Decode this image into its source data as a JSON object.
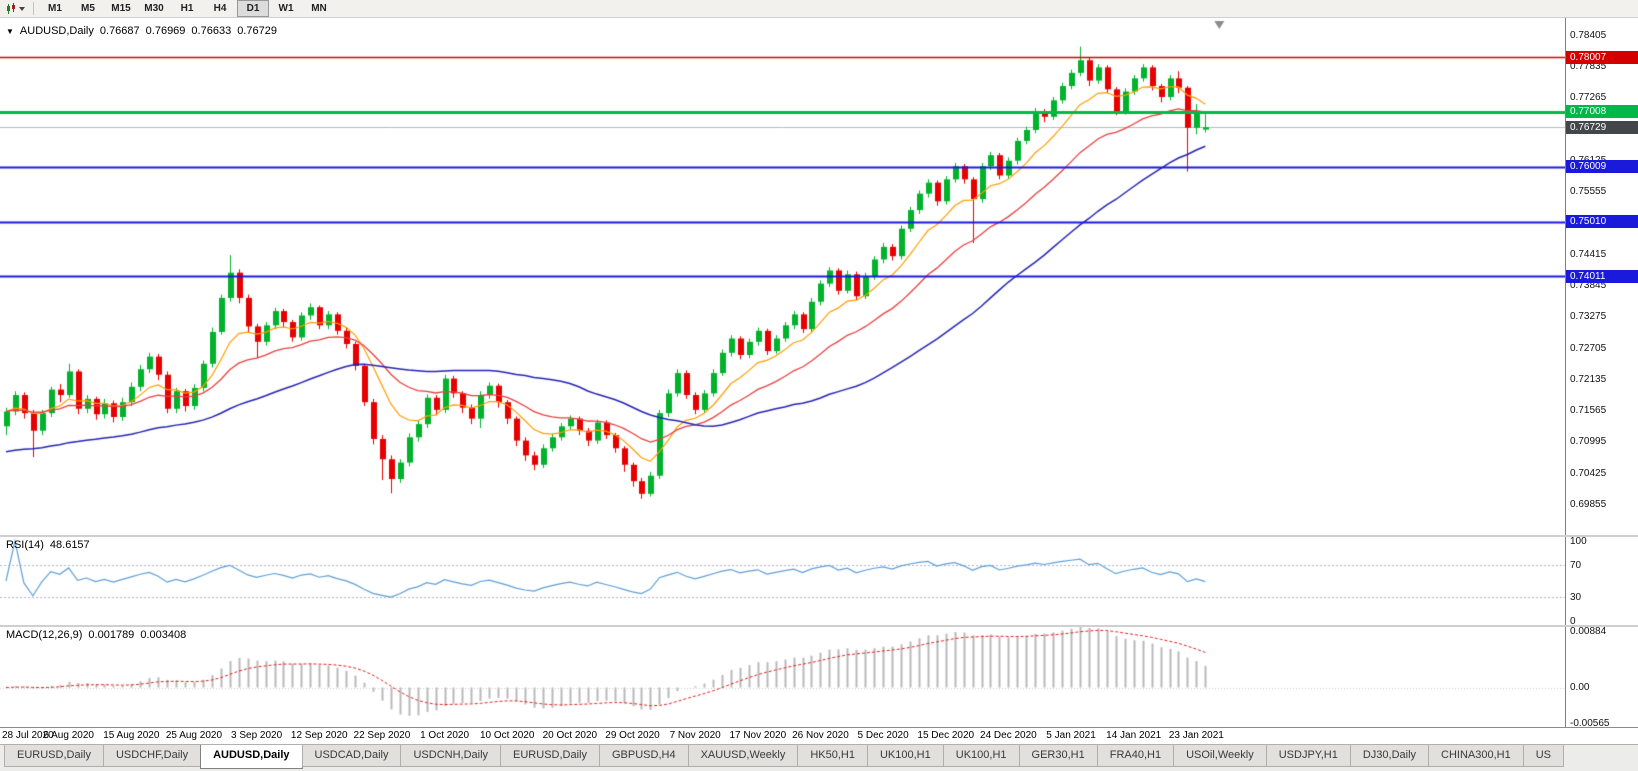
{
  "toolbar": {
    "timeframes": [
      "M1",
      "M5",
      "M15",
      "M30",
      "H1",
      "H4",
      "D1",
      "W1",
      "MN"
    ],
    "active_timeframe": "D1",
    "icons": [
      "candlestick-chart-icon",
      "caret-down-icon"
    ]
  },
  "main_header": {
    "icon": "▼",
    "symbol": "AUDUSD,Daily",
    "open": "0.76687",
    "high": "0.76969",
    "low": "0.76633",
    "close": "0.76729"
  },
  "rsi_header": {
    "name": "RSI(14)",
    "value": "48.6157"
  },
  "macd_header": {
    "name": "MACD(12,26,9)",
    "value1": "0.001789",
    "value2": "0.003408"
  },
  "chart_data": {
    "type": "candlestick",
    "symbol": "AUDUSD",
    "timeframe": "Daily",
    "ohlc_display": {
      "open": 0.76687,
      "high": 0.76969,
      "low": 0.76633,
      "close": 0.76729
    },
    "price_range": {
      "min": 0.693,
      "max": 0.7872
    },
    "bar_spacing": 8.95,
    "colors": {
      "up": "#00b22c",
      "down": "#e60000",
      "ma_fast": "#ff9d00",
      "ma_mid": "#e8403f",
      "ma_slow": "#2424b4",
      "rsi": "#5f9ed6",
      "macd_hist": "#b8b8b8",
      "macd_signal": "#dd2222",
      "bid_line": "#b8b8b8"
    },
    "y_ticks": [
      "0.78405",
      "0.77835",
      "0.77265",
      "0.76695",
      "0.76125",
      "0.75555",
      "0.74985",
      "0.74415",
      "0.73845",
      "0.73275",
      "0.72705",
      "0.72135",
      "0.71565",
      "0.70995",
      "0.70425",
      "0.69855"
    ],
    "levels": [
      {
        "price": 0.78007,
        "label": "0.78007",
        "color": "#d40000",
        "width": 1.4
      },
      {
        "price": 0.77008,
        "label": "0.77008",
        "color": "#00b84a",
        "width": 3
      },
      {
        "price": 0.76009,
        "label": "0.76009",
        "color": "#1a1adc",
        "width": 2
      },
      {
        "price": 0.7501,
        "label": "0.75010",
        "color": "#1a1adc",
        "width": 2
      },
      {
        "price": 0.74011,
        "label": "0.74011",
        "color": "#1a1adc",
        "width": 2
      }
    ],
    "bid": {
      "price": 0.76729,
      "label": "0.76729",
      "badge_color": "#43474c"
    },
    "x_labels": [
      "28 Jul 2020",
      "6 Aug 2020",
      "15 Aug 2020",
      "25 Aug 2020",
      "3 Sep 2020",
      "12 Sep 2020",
      "22 Sep 2020",
      "1 Oct 2020",
      "10 Oct 2020",
      "20 Oct 2020",
      "29 Oct 2020",
      "7 Nov 2020",
      "17 Nov 2020",
      "26 Nov 2020",
      "5 Dec 2020",
      "15 Dec 2020",
      "24 Dec 2020",
      "5 Jan 2021",
      "14 Jan 2021",
      "23 Jan 2021"
    ],
    "x_label_bars": [
      0,
      7,
      14,
      21,
      28,
      35,
      42,
      49,
      56,
      63,
      70,
      77,
      84,
      91,
      98,
      105,
      112,
      119,
      126,
      133
    ],
    "ma_periods": {
      "fast_ema": 9,
      "mid_ema": 21,
      "slow_sma": 40,
      "slow_seed": 0.708
    },
    "rsi": {
      "period": 14,
      "levels": [
        70,
        30
      ],
      "y_ticks": [
        "100",
        "70",
        "30",
        "0"
      ],
      "range": {
        "min": -5,
        "max": 105
      }
    },
    "macd": {
      "fast": 12,
      "slow": 26,
      "signal": 9,
      "range": {
        "min": -0.0062,
        "max": 0.0095
      },
      "y_ticks": [
        {
          "label": "0.00884",
          "value": 0.00884
        },
        {
          "label": "0.00",
          "value": 0
        },
        {
          "label": "-0.00565",
          "value": -0.00565
        }
      ]
    },
    "candles": [
      [
        0.7128,
        0.7162,
        0.7112,
        0.7155
      ],
      [
        0.7155,
        0.7192,
        0.7148,
        0.7185
      ],
      [
        0.7185,
        0.719,
        0.7142,
        0.7152
      ],
      [
        0.7152,
        0.7158,
        0.7072,
        0.712
      ],
      [
        0.712,
        0.7158,
        0.7112,
        0.7152
      ],
      [
        0.7152,
        0.72,
        0.7145,
        0.7195
      ],
      [
        0.7195,
        0.7205,
        0.7172,
        0.7185
      ],
      [
        0.7185,
        0.7242,
        0.718,
        0.7228
      ],
      [
        0.7228,
        0.7232,
        0.715,
        0.716
      ],
      [
        0.716,
        0.7185,
        0.7152,
        0.7178
      ],
      [
        0.7178,
        0.7182,
        0.714,
        0.715
      ],
      [
        0.715,
        0.7178,
        0.7142,
        0.717
      ],
      [
        0.717,
        0.7175,
        0.7135,
        0.7145
      ],
      [
        0.7145,
        0.718,
        0.7138,
        0.7172
      ],
      [
        0.7172,
        0.7208,
        0.7165,
        0.72
      ],
      [
        0.72,
        0.724,
        0.7192,
        0.7232
      ],
      [
        0.7232,
        0.7262,
        0.7225,
        0.7255
      ],
      [
        0.7255,
        0.726,
        0.7212,
        0.7222
      ],
      [
        0.7222,
        0.7228,
        0.7152,
        0.716
      ],
      [
        0.716,
        0.7198,
        0.7152,
        0.7192
      ],
      [
        0.7192,
        0.7196,
        0.7155,
        0.7165
      ],
      [
        0.7165,
        0.7205,
        0.7158,
        0.7198
      ],
      [
        0.7198,
        0.7248,
        0.7192,
        0.7242
      ],
      [
        0.7242,
        0.7308,
        0.7235,
        0.73
      ],
      [
        0.73,
        0.7368,
        0.7295,
        0.7362
      ],
      [
        0.7362,
        0.744,
        0.7355,
        0.7408
      ],
      [
        0.7408,
        0.7414,
        0.7352,
        0.7362
      ],
      [
        0.7362,
        0.7368,
        0.7298,
        0.731
      ],
      [
        0.731,
        0.7315,
        0.7252,
        0.7282
      ],
      [
        0.7282,
        0.7318,
        0.7275,
        0.7312
      ],
      [
        0.7312,
        0.7344,
        0.7305,
        0.7338
      ],
      [
        0.7338,
        0.7342,
        0.7308,
        0.7318
      ],
      [
        0.7318,
        0.7322,
        0.7282,
        0.729
      ],
      [
        0.729,
        0.7336,
        0.7284,
        0.733
      ],
      [
        0.733,
        0.7352,
        0.7322,
        0.7345
      ],
      [
        0.7345,
        0.7348,
        0.7305,
        0.7312
      ],
      [
        0.7312,
        0.7338,
        0.7305,
        0.7332
      ],
      [
        0.7332,
        0.7336,
        0.7295,
        0.7302
      ],
      [
        0.7302,
        0.7308,
        0.727,
        0.7278
      ],
      [
        0.7278,
        0.7282,
        0.723,
        0.7238
      ],
      [
        0.7238,
        0.7242,
        0.7165,
        0.7172
      ],
      [
        0.7172,
        0.7178,
        0.7095,
        0.7105
      ],
      [
        0.7105,
        0.7112,
        0.703,
        0.7068
      ],
      [
        0.7068,
        0.7075,
        0.7006,
        0.7032
      ],
      [
        0.7032,
        0.7068,
        0.7025,
        0.7062
      ],
      [
        0.7062,
        0.7115,
        0.7055,
        0.7108
      ],
      [
        0.7108,
        0.7138,
        0.71,
        0.7132
      ],
      [
        0.7132,
        0.7186,
        0.7125,
        0.718
      ],
      [
        0.718,
        0.7185,
        0.7148,
        0.7158
      ],
      [
        0.7158,
        0.7222,
        0.7152,
        0.7215
      ],
      [
        0.7215,
        0.722,
        0.718,
        0.7188
      ],
      [
        0.7188,
        0.7192,
        0.7152,
        0.7162
      ],
      [
        0.7162,
        0.7168,
        0.7132,
        0.7142
      ],
      [
        0.7142,
        0.7192,
        0.7125,
        0.7185
      ],
      [
        0.7185,
        0.7208,
        0.7178,
        0.7202
      ],
      [
        0.7202,
        0.7206,
        0.7162,
        0.7172
      ],
      [
        0.7172,
        0.7176,
        0.7132,
        0.7142
      ],
      [
        0.7142,
        0.7146,
        0.7092,
        0.7102
      ],
      [
        0.7102,
        0.7108,
        0.7065,
        0.7075
      ],
      [
        0.7075,
        0.7082,
        0.7048,
        0.7058
      ],
      [
        0.7058,
        0.7095,
        0.7052,
        0.7088
      ],
      [
        0.7088,
        0.7115,
        0.7082,
        0.7108
      ],
      [
        0.7108,
        0.7134,
        0.7102,
        0.7128
      ],
      [
        0.7128,
        0.7148,
        0.7122,
        0.7142
      ],
      [
        0.7142,
        0.7146,
        0.7112,
        0.712
      ],
      [
        0.712,
        0.7125,
        0.7092,
        0.7102
      ],
      [
        0.7102,
        0.714,
        0.7096,
        0.7135
      ],
      [
        0.7135,
        0.7139,
        0.7105,
        0.7112
      ],
      [
        0.7112,
        0.7116,
        0.708,
        0.7088
      ],
      [
        0.7088,
        0.7092,
        0.7045,
        0.7058
      ],
      [
        0.7058,
        0.7062,
        0.7018,
        0.7028
      ],
      [
        0.7028,
        0.7034,
        0.6996,
        0.7005
      ],
      [
        0.7005,
        0.7045,
        0.7,
        0.7038
      ],
      [
        0.7038,
        0.7158,
        0.7032,
        0.7152
      ],
      [
        0.7152,
        0.7195,
        0.7145,
        0.7188
      ],
      [
        0.7188,
        0.7232,
        0.7182,
        0.7225
      ],
      [
        0.7225,
        0.723,
        0.7178,
        0.7185
      ],
      [
        0.7185,
        0.719,
        0.715,
        0.7158
      ],
      [
        0.7158,
        0.7194,
        0.7152,
        0.7188
      ],
      [
        0.7188,
        0.7232,
        0.7182,
        0.7225
      ],
      [
        0.7225,
        0.7268,
        0.722,
        0.7262
      ],
      [
        0.7262,
        0.7294,
        0.7255,
        0.7288
      ],
      [
        0.7288,
        0.7292,
        0.725,
        0.7258
      ],
      [
        0.7258,
        0.7288,
        0.7252,
        0.7282
      ],
      [
        0.7282,
        0.7308,
        0.7275,
        0.7302
      ],
      [
        0.7302,
        0.7306,
        0.7258,
        0.7265
      ],
      [
        0.7265,
        0.7294,
        0.726,
        0.7288
      ],
      [
        0.7288,
        0.7318,
        0.7282,
        0.7312
      ],
      [
        0.7312,
        0.7338,
        0.7305,
        0.7332
      ],
      [
        0.7332,
        0.7336,
        0.7298,
        0.7305
      ],
      [
        0.7305,
        0.7362,
        0.73,
        0.7355
      ],
      [
        0.7355,
        0.7394,
        0.7348,
        0.7388
      ],
      [
        0.7388,
        0.7418,
        0.7382,
        0.7412
      ],
      [
        0.7412,
        0.7416,
        0.7368,
        0.7375
      ],
      [
        0.7375,
        0.7412,
        0.737,
        0.7405
      ],
      [
        0.7405,
        0.741,
        0.7358,
        0.7365
      ],
      [
        0.7365,
        0.7408,
        0.736,
        0.7402
      ],
      [
        0.7402,
        0.7438,
        0.7395,
        0.7432
      ],
      [
        0.7432,
        0.7462,
        0.7425,
        0.7455
      ],
      [
        0.7455,
        0.746,
        0.743,
        0.7438
      ],
      [
        0.7438,
        0.7494,
        0.7432,
        0.7488
      ],
      [
        0.7488,
        0.7528,
        0.7482,
        0.7522
      ],
      [
        0.7522,
        0.7558,
        0.7515,
        0.7552
      ],
      [
        0.7552,
        0.7578,
        0.7545,
        0.7572
      ],
      [
        0.7572,
        0.7576,
        0.753,
        0.7538
      ],
      [
        0.7538,
        0.7584,
        0.7532,
        0.7578
      ],
      [
        0.7578,
        0.7608,
        0.7572,
        0.7602
      ],
      [
        0.7602,
        0.7606,
        0.757,
        0.7578
      ],
      [
        0.7578,
        0.7582,
        0.7462,
        0.7542
      ],
      [
        0.7542,
        0.7608,
        0.7535,
        0.7602
      ],
      [
        0.7602,
        0.7628,
        0.7595,
        0.7622
      ],
      [
        0.7622,
        0.7626,
        0.7578,
        0.7585
      ],
      [
        0.7585,
        0.7618,
        0.758,
        0.7612
      ],
      [
        0.7612,
        0.7654,
        0.7605,
        0.7648
      ],
      [
        0.7648,
        0.7674,
        0.7642,
        0.7668
      ],
      [
        0.7668,
        0.7708,
        0.7662,
        0.7702
      ],
      [
        0.7702,
        0.7706,
        0.7682,
        0.7692
      ],
      [
        0.7692,
        0.7728,
        0.7686,
        0.7722
      ],
      [
        0.7722,
        0.7754,
        0.7716,
        0.7748
      ],
      [
        0.7748,
        0.7778,
        0.7742,
        0.7772
      ],
      [
        0.7772,
        0.782,
        0.7766,
        0.7795
      ],
      [
        0.7795,
        0.78,
        0.7748,
        0.7758
      ],
      [
        0.7758,
        0.7788,
        0.7752,
        0.7782
      ],
      [
        0.7782,
        0.7786,
        0.7735,
        0.7742
      ],
      [
        0.7742,
        0.7746,
        0.7695,
        0.7702
      ],
      [
        0.7702,
        0.7744,
        0.7696,
        0.7738
      ],
      [
        0.7738,
        0.7768,
        0.7732,
        0.7762
      ],
      [
        0.7762,
        0.7788,
        0.7756,
        0.7782
      ],
      [
        0.7782,
        0.7786,
        0.774,
        0.7748
      ],
      [
        0.7748,
        0.7752,
        0.7718,
        0.7728
      ],
      [
        0.7728,
        0.7768,
        0.7722,
        0.7762
      ],
      [
        0.7762,
        0.7775,
        0.7735,
        0.7745
      ],
      [
        0.7745,
        0.7748,
        0.7592,
        0.7672
      ],
      [
        0.7672,
        0.7715,
        0.766,
        0.7702
      ],
      [
        0.76687,
        0.76969,
        0.76633,
        0.76729
      ]
    ]
  },
  "tabs": [
    {
      "label": "EURUSD,Daily",
      "active": false
    },
    {
      "label": "USDCHF,Daily",
      "active": false
    },
    {
      "label": "AUDUSD,Daily",
      "active": true
    },
    {
      "label": "USDCAD,Daily",
      "active": false
    },
    {
      "label": "USDCNH,Daily",
      "active": false
    },
    {
      "label": "EURUSD,Daily",
      "active": false
    },
    {
      "label": "GBPUSD,H4",
      "active": false
    },
    {
      "label": "XAUUSD,Weekly",
      "active": false
    },
    {
      "label": "HK50,H1",
      "active": false
    },
    {
      "label": "UK100,H1",
      "active": false
    },
    {
      "label": "UK100,H1",
      "active": false
    },
    {
      "label": "GER30,H1",
      "active": false
    },
    {
      "label": "FRA40,H1",
      "active": false
    },
    {
      "label": "USOil,Weekly",
      "active": false
    },
    {
      "label": "USDJPY,H1",
      "active": false
    },
    {
      "label": "DJ30,Daily",
      "active": false
    },
    {
      "label": "CHINA300,H1",
      "active": false
    },
    {
      "label": "US",
      "active": false
    }
  ]
}
